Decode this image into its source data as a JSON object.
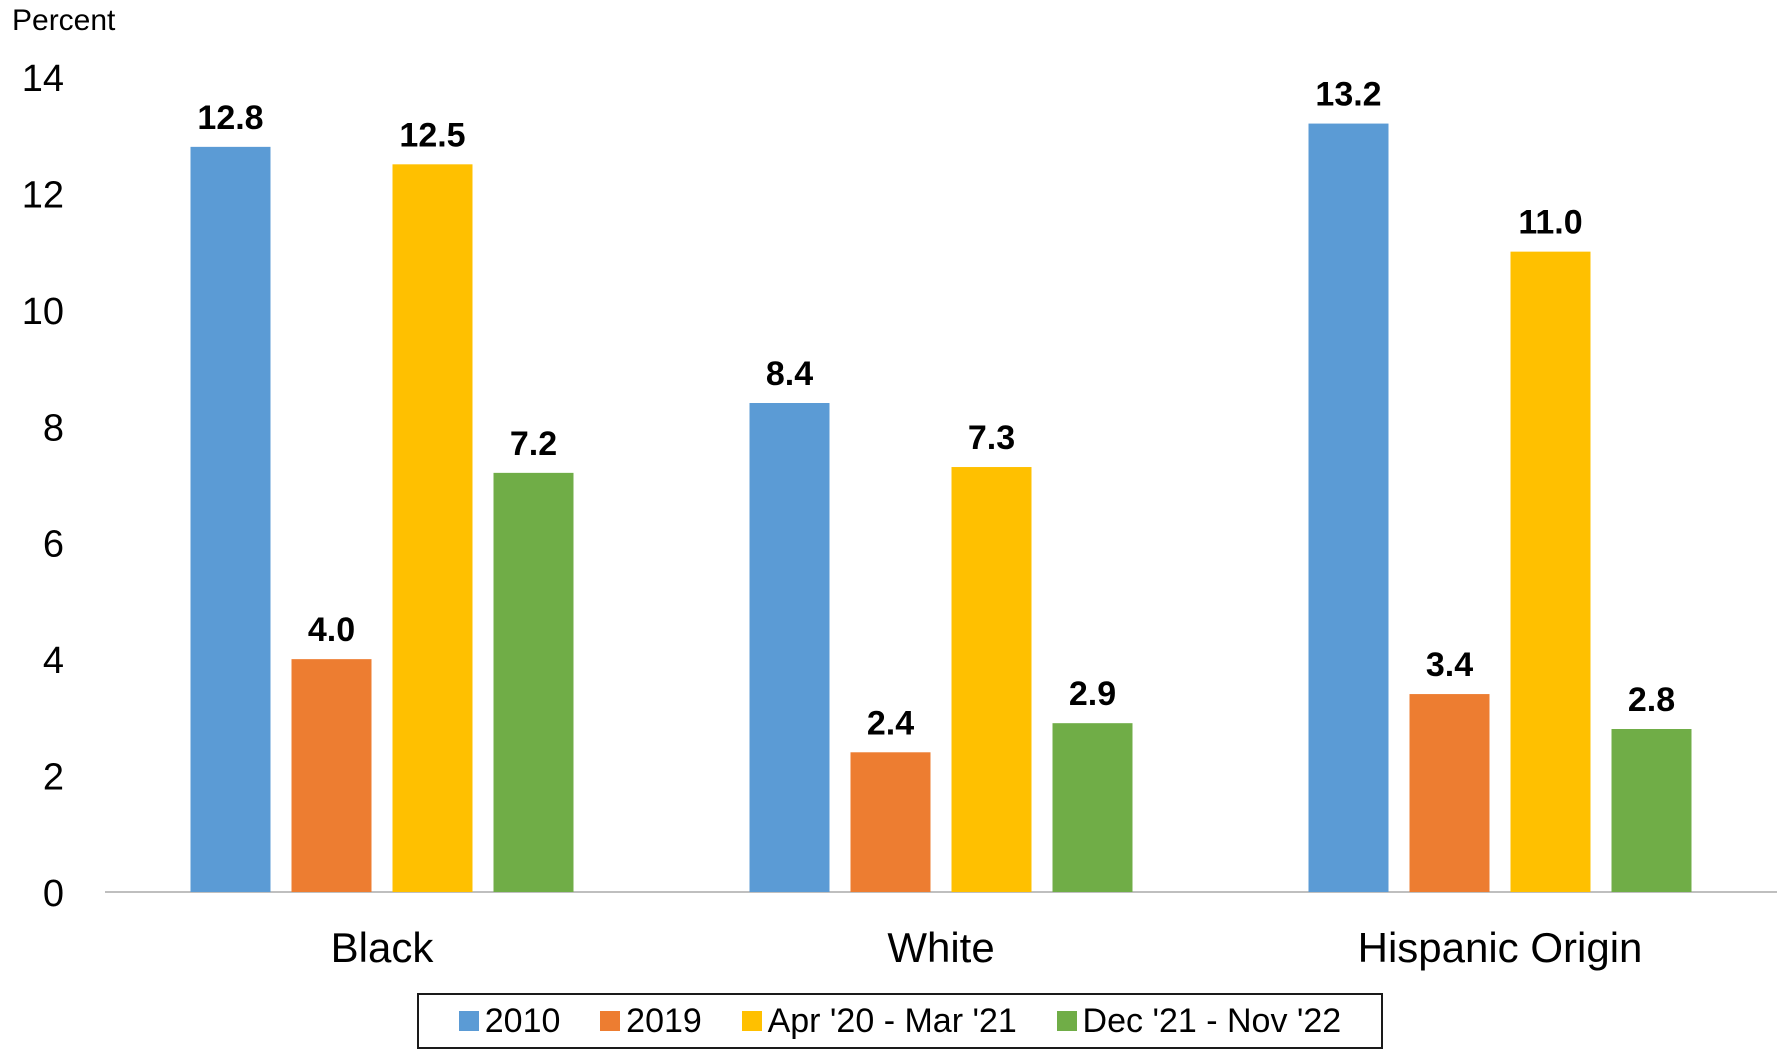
{
  "chart_data": {
    "type": "bar",
    "ylabel": "Percent",
    "ylim": [
      0,
      14
    ],
    "yticks": [
      0,
      2,
      4,
      6,
      8,
      10,
      12,
      14
    ],
    "categories": [
      "Black",
      "White",
      "Hispanic Origin"
    ],
    "series": [
      {
        "name": "2010",
        "color": "#5B9BD5",
        "values": [
          12.8,
          8.4,
          13.2
        ],
        "labels": [
          "12.8",
          "8.4",
          "13.2"
        ]
      },
      {
        "name": "2019",
        "color": "#ED7D31",
        "values": [
          4.0,
          2.4,
          3.4
        ],
        "labels": [
          "4.0",
          "2.4",
          "3.4"
        ]
      },
      {
        "name": "Apr '20 - Mar '21",
        "color": "#FFC000",
        "values": [
          12.5,
          7.3,
          11.0
        ],
        "labels": [
          "12.5",
          "7.3",
          "11.0"
        ]
      },
      {
        "name": "Dec '21 - Nov '22",
        "color": "#70AD47",
        "values": [
          7.2,
          2.9,
          2.8
        ],
        "labels": [
          "7.2",
          "2.9",
          "2.8"
        ]
      }
    ],
    "grid": false,
    "legend_position": "bottom",
    "data_labels": true
  }
}
